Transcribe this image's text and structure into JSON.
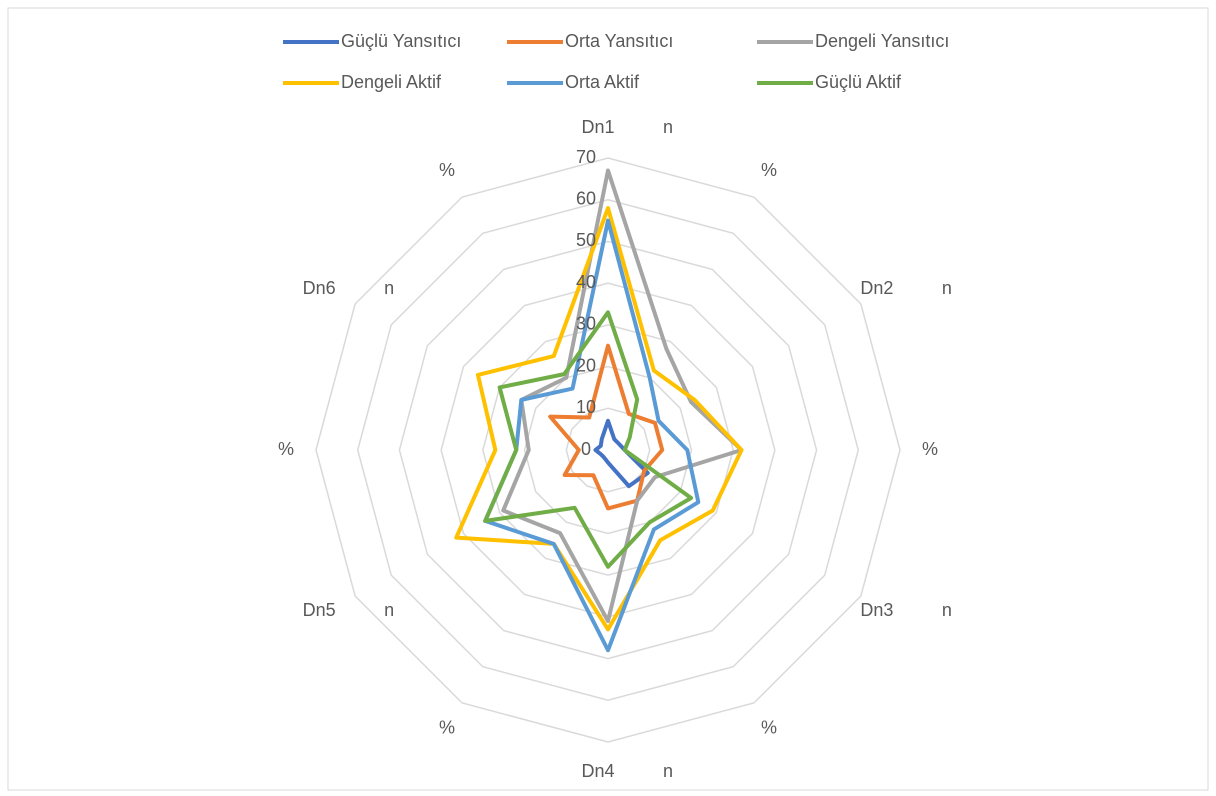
{
  "chart_data": {
    "type": "radar",
    "groups": [
      "Dn1",
      "Dn2",
      "Dn3",
      "Dn4",
      "Dn5",
      "Dn6"
    ],
    "categories": [
      "n",
      "%",
      "n",
      "%",
      "n",
      "%",
      "n",
      "%",
      "n",
      "%",
      "n",
      "%"
    ],
    "ylim": [
      0,
      70
    ],
    "yticks": [
      0,
      10,
      20,
      30,
      40,
      50,
      60,
      70
    ],
    "grid": true,
    "legend": "top",
    "series": [
      {
        "name": "Güçlü Yansıtıcı",
        "color": "#4472c4",
        "values": [
          7,
          3,
          3,
          4,
          11,
          10,
          3,
          2,
          2,
          3,
          2,
          3
        ]
      },
      {
        "name": "Orta Yansıtıcı",
        "color": "#ed7d31",
        "values": [
          25,
          10,
          13,
          13,
          10,
          14,
          14,
          7,
          12,
          7,
          16,
          9
        ]
      },
      {
        "name": "Dengeli Yansıtıcı",
        "color": "#a5a5a5",
        "values": [
          67,
          28,
          23,
          32,
          13,
          14,
          41,
          23,
          29,
          19,
          24,
          20
        ]
      },
      {
        "name": "Dengeli Aktif",
        "color": "#ffc000",
        "values": [
          58,
          22,
          24,
          32,
          29,
          25,
          43,
          26,
          42,
          27,
          36,
          26
        ]
      },
      {
        "name": "Orta Aktif",
        "color": "#5b9bd5",
        "values": [
          55,
          20,
          14,
          19,
          25,
          22,
          48,
          26,
          34,
          22,
          24,
          17
        ]
      },
      {
        "name": "Güçlü Aktif",
        "color": "#70ad47",
        "values": [
          33,
          14,
          6,
          4,
          23,
          20,
          28,
          16,
          34,
          22,
          30,
          21
        ]
      }
    ]
  }
}
